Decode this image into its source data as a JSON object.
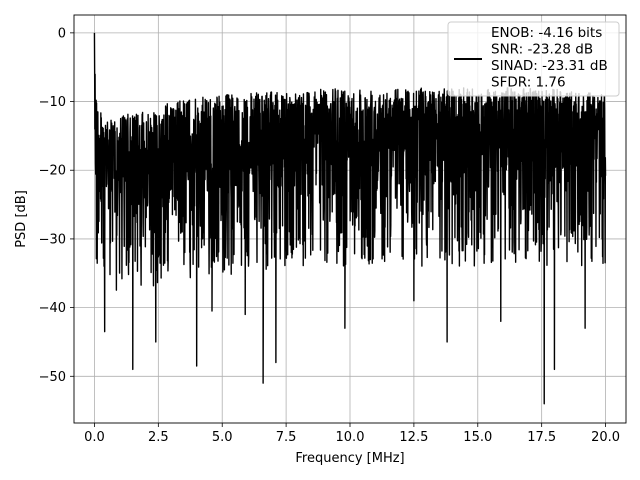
{
  "chart_data": {
    "type": "line",
    "title": "",
    "xlabel": "Frequency [MHz]",
    "ylabel": "PSD [dB]",
    "xlim": [
      -0.8,
      20.8
    ],
    "ylim": [
      -56.8,
      2.6
    ],
    "x_ticks": [
      0.0,
      2.5,
      5.0,
      7.5,
      10.0,
      12.5,
      15.0,
      17.5,
      20.0
    ],
    "x_tick_labels": [
      "0.0",
      "2.5",
      "5.0",
      "7.5",
      "10.0",
      "12.5",
      "15.0",
      "17.5",
      "20.0"
    ],
    "y_ticks": [
      0,
      -10,
      -20,
      -30,
      -40,
      -50
    ],
    "y_tick_labels": [
      "0",
      "−10",
      "−20",
      "−30",
      "−40",
      "−50"
    ],
    "grid": true,
    "legend": {
      "placement": "top-right",
      "entries": [
        "ENOB: -4.16 bits",
        "SNR: -23.28 dB",
        "SINAD: -23.31 dB",
        "SFDR: 1.76"
      ]
    },
    "series": [
      {
        "color": "#000000",
        "x_range": [
          0.0,
          20.0
        ],
        "points_description": "dense noisy power spectral density trace",
        "peak": {
          "x": 0.0,
          "y": 0.0
        },
        "upper_envelope": {
          "x": [
            0.0,
            0.1,
            0.5,
            1.0,
            2.0,
            3.0,
            5.0,
            7.5,
            10.0,
            12.5,
            15.0,
            17.5,
            20.0
          ],
          "y": [
            0.0,
            -10.0,
            -13.0,
            -12.0,
            -11.5,
            -10.0,
            -9.0,
            -8.5,
            -8.0,
            -8.0,
            -8.0,
            -8.0,
            -9.0
          ]
        },
        "median_level": {
          "x": [
            0.0,
            0.5,
            1.0,
            2.0,
            3.0,
            5.0,
            7.5,
            10.0,
            12.5,
            15.0,
            17.5,
            20.0
          ],
          "y": [
            -17.0,
            -22.0,
            -21.0,
            -20.0,
            -19.5,
            -18.5,
            -17.5,
            -17.0,
            -17.0,
            -17.0,
            -17.0,
            -17.0
          ]
        },
        "deep_dips": [
          {
            "x": 0.4,
            "y": -43.5
          },
          {
            "x": 1.5,
            "y": -49.0
          },
          {
            "x": 2.4,
            "y": -45.0
          },
          {
            "x": 4.0,
            "y": -48.5
          },
          {
            "x": 4.6,
            "y": -40.5
          },
          {
            "x": 5.9,
            "y": -41.0
          },
          {
            "x": 6.6,
            "y": -51.0
          },
          {
            "x": 7.1,
            "y": -48.0
          },
          {
            "x": 9.8,
            "y": -43.0
          },
          {
            "x": 12.5,
            "y": -39.0
          },
          {
            "x": 13.8,
            "y": -45.0
          },
          {
            "x": 15.9,
            "y": -42.0
          },
          {
            "x": 17.6,
            "y": -54.0
          },
          {
            "x": 18.0,
            "y": -49.0
          },
          {
            "x": 19.2,
            "y": -43.0
          }
        ]
      }
    ]
  }
}
